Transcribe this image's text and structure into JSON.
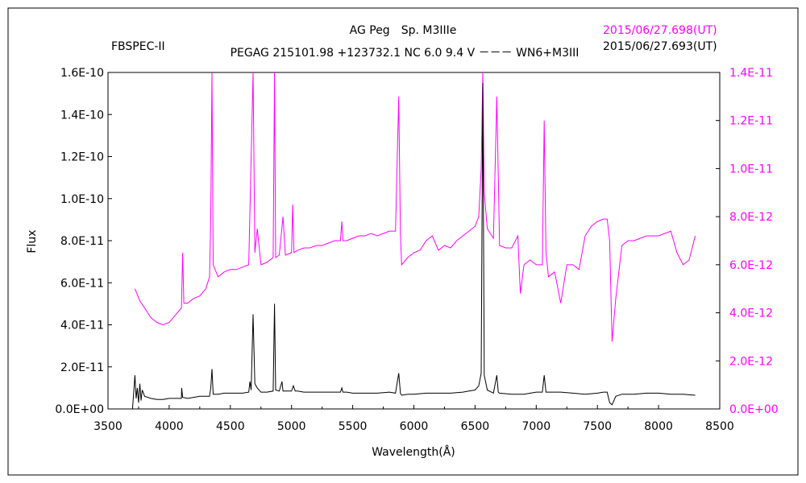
{
  "chart_data": {
    "type": "line",
    "title_line1": "AG Peg　Sp. M3IIIe",
    "title_line2": "PEGAG 215101.98 +123732.1 NC 6.0 9.4 V －－－ WN6+M3III",
    "instrument": "FBSPEC-II",
    "xlabel": "Wavelength(Å)",
    "ylabel": "Flux",
    "xlim": [
      3500,
      8500
    ],
    "ylim_left": [
      0,
      1.6e-10
    ],
    "ylim_right": [
      0,
      1.4e-11
    ],
    "x_ticks": [
      "3500",
      "4000",
      "4500",
      "5000",
      "5500",
      "6000",
      "6500",
      "7000",
      "7500",
      "8000",
      "8500"
    ],
    "y_left_ticks": [
      "0.0E+00",
      "2.0E-11",
      "4.0E-11",
      "6.0E-11",
      "8.0E-11",
      "1.0E-10",
      "1.2E-10",
      "1.4E-10",
      "1.6E-10"
    ],
    "y_right_ticks": [
      "0.0E+00",
      "2.0E-12",
      "4.0E-12",
      "6.0E-12",
      "8.0E-12",
      "1.0E-11",
      "1.2E-11",
      "1.4E-11"
    ],
    "series": [
      {
        "name": "2015/06/27.698(UT)",
        "axis": "right",
        "color": "#ff00ff",
        "x": [
          3720,
          3760,
          3800,
          3850,
          3900,
          3950,
          4000,
          4050,
          4100,
          4110,
          4120,
          4150,
          4200,
          4250,
          4300,
          4330,
          4340,
          4350,
          4360,
          4400,
          4450,
          4500,
          4550,
          4600,
          4650,
          4686,
          4700,
          4720,
          4750,
          4800,
          4850,
          4861,
          4870,
          4900,
          4930,
          4950,
          5000,
          5010,
          5020,
          5050,
          5100,
          5150,
          5200,
          5250,
          5300,
          5350,
          5400,
          5411,
          5420,
          5450,
          5500,
          5550,
          5600,
          5650,
          5700,
          5750,
          5800,
          5850,
          5876,
          5890,
          5900,
          5950,
          6000,
          6050,
          6100,
          6150,
          6200,
          6250,
          6300,
          6350,
          6400,
          6450,
          6500,
          6530,
          6550,
          6563,
          6575,
          6600,
          6650,
          6678,
          6700,
          6750,
          6800,
          6850,
          6870,
          6900,
          6950,
          7000,
          7050,
          7065,
          7080,
          7100,
          7150,
          7200,
          7250,
          7300,
          7350,
          7400,
          7450,
          7500,
          7550,
          7580,
          7600,
          7620,
          7650,
          7700,
          7750,
          7800,
          7850,
          7900,
          7950,
          8000,
          8050,
          8100,
          8150,
          8200,
          8250,
          8300
        ],
        "values": [
          5.0,
          4.5,
          4.2,
          3.8,
          3.6,
          3.5,
          3.6,
          3.9,
          4.2,
          6.5,
          4.4,
          4.4,
          4.6,
          4.7,
          5.0,
          5.5,
          8.0,
          14.0,
          6.0,
          5.5,
          5.7,
          5.8,
          5.8,
          5.9,
          6.0,
          14.0,
          6.5,
          7.5,
          6.0,
          6.1,
          6.3,
          14.0,
          6.3,
          6.4,
          8.0,
          6.4,
          6.5,
          8.5,
          6.5,
          6.6,
          6.7,
          6.7,
          6.8,
          6.8,
          6.9,
          7.0,
          7.0,
          7.8,
          7.0,
          7.0,
          7.1,
          7.2,
          7.2,
          7.3,
          7.2,
          7.3,
          7.4,
          7.4,
          13.0,
          7.3,
          6.0,
          6.3,
          6.5,
          6.6,
          7.0,
          7.2,
          6.6,
          6.8,
          6.7,
          7.0,
          7.2,
          7.4,
          7.6,
          8.0,
          10.0,
          14.0,
          9.0,
          7.5,
          7.1,
          13.0,
          6.8,
          6.7,
          6.7,
          7.2,
          4.8,
          6.0,
          6.2,
          6.0,
          6.0,
          12.0,
          6.5,
          5.5,
          5.7,
          4.4,
          6.0,
          6.0,
          5.8,
          7.2,
          7.6,
          7.8,
          7.9,
          7.9,
          7.0,
          2.8,
          4.6,
          6.8,
          7.0,
          7.0,
          7.1,
          7.2,
          7.2,
          7.2,
          7.3,
          7.4,
          6.5,
          6.0,
          6.2,
          7.2
        ]
      },
      {
        "name": "2015/06/27.693(UT)",
        "axis": "left",
        "color": "#000000",
        "x": [
          3700,
          3720,
          3730,
          3740,
          3750,
          3760,
          3770,
          3780,
          3800,
          3850,
          3900,
          3950,
          4000,
          4050,
          4100,
          4102,
          4110,
          4150,
          4200,
          4250,
          4300,
          4330,
          4340,
          4350,
          4360,
          4400,
          4450,
          4500,
          4550,
          4600,
          4650,
          4660,
          4670,
          4686,
          4700,
          4720,
          4750,
          4800,
          4850,
          4861,
          4870,
          4900,
          4922,
          4930,
          4950,
          5000,
          5015,
          5030,
          5050,
          5100,
          5150,
          5200,
          5300,
          5400,
          5411,
          5420,
          5450,
          5500,
          5600,
          5700,
          5800,
          5850,
          5876,
          5890,
          5900,
          5950,
          6000,
          6100,
          6200,
          6300,
          6400,
          6450,
          6500,
          6530,
          6550,
          6563,
          6575,
          6600,
          6650,
          6678,
          6690,
          6700,
          6800,
          6900,
          7000,
          7050,
          7065,
          7080,
          7100,
          7200,
          7300,
          7400,
          7500,
          7550,
          7580,
          7600,
          7620,
          7650,
          7700,
          7800,
          7900,
          8000,
          8100,
          8200,
          8300
        ],
        "values": [
          0.0,
          1.6,
          0.5,
          1.0,
          0.3,
          1.2,
          0.4,
          0.9,
          0.6,
          0.5,
          0.45,
          0.45,
          0.5,
          0.5,
          0.5,
          1.0,
          0.55,
          0.5,
          0.55,
          0.6,
          0.6,
          0.6,
          1.0,
          1.9,
          0.7,
          0.7,
          0.75,
          0.75,
          0.75,
          0.75,
          0.8,
          1.3,
          0.9,
          4.5,
          1.2,
          1.0,
          0.8,
          0.8,
          0.85,
          5.0,
          0.9,
          0.85,
          1.3,
          0.85,
          0.85,
          0.85,
          1.1,
          0.85,
          0.85,
          0.8,
          0.8,
          0.8,
          0.8,
          0.8,
          1.0,
          0.8,
          0.8,
          0.75,
          0.75,
          0.75,
          0.8,
          0.75,
          1.7,
          0.75,
          0.65,
          0.7,
          0.7,
          0.75,
          0.75,
          0.75,
          0.8,
          0.85,
          0.9,
          1.1,
          1.7,
          15.5,
          1.6,
          0.9,
          0.75,
          1.6,
          0.8,
          0.75,
          0.7,
          0.7,
          0.8,
          0.8,
          1.6,
          0.8,
          0.8,
          0.8,
          0.75,
          0.7,
          0.75,
          0.8,
          0.8,
          0.3,
          0.2,
          0.6,
          0.7,
          0.7,
          0.75,
          0.75,
          0.7,
          0.7,
          0.65
        ]
      }
    ]
  }
}
